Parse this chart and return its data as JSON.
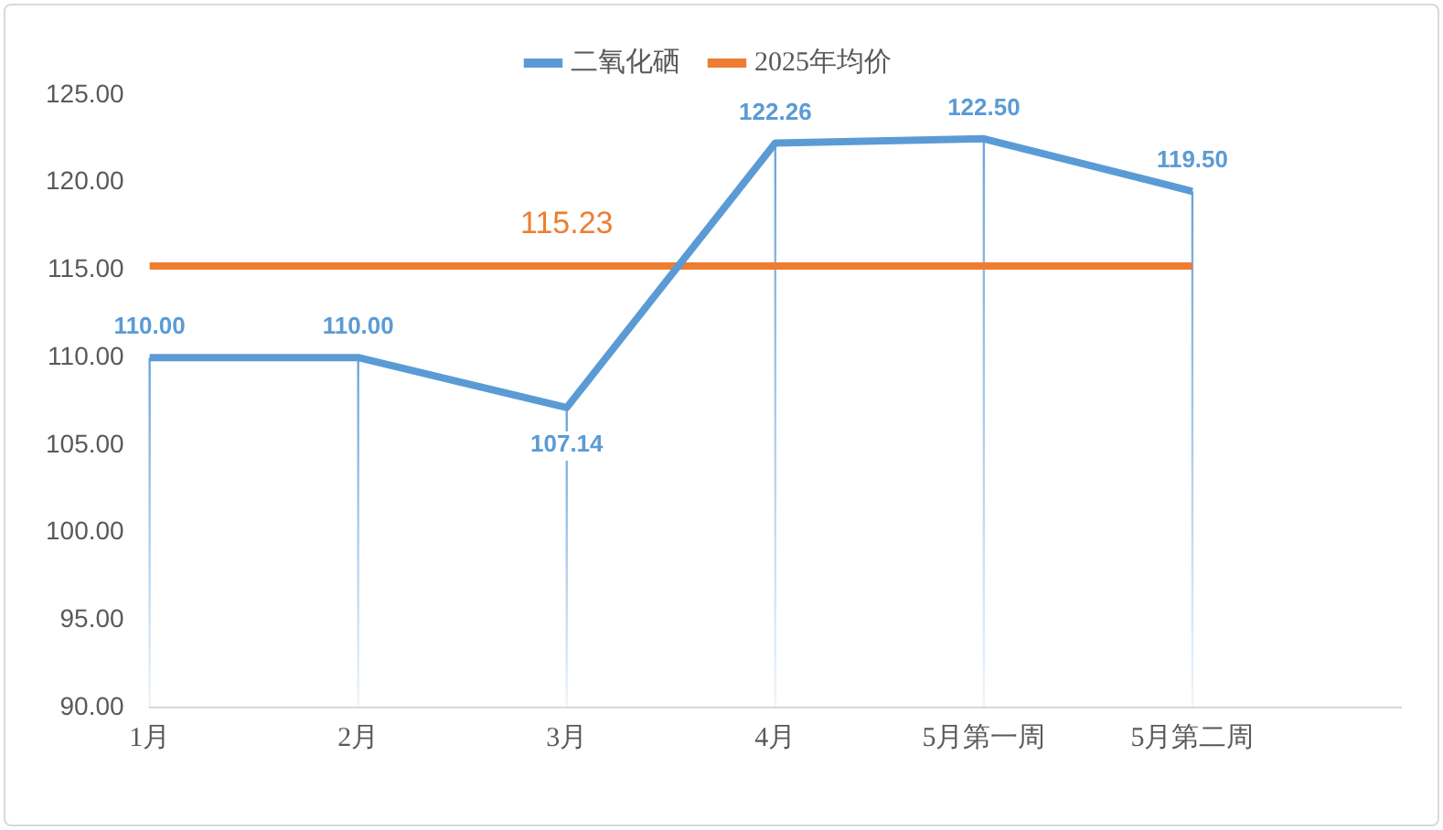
{
  "chart_data": {
    "type": "line",
    "categories": [
      "1月",
      "2月",
      "3月",
      "4月",
      "5月第一周",
      "5月第二周",
      null
    ],
    "series": [
      {
        "name": "二氧化硒",
        "color": "#5b9bd5",
        "values": [
          110,
          110,
          107.14,
          122.26,
          122.5,
          119.5,
          null
        ],
        "value_labels": [
          "110.00",
          "110.00",
          "107.14",
          "122.26",
          "122.50",
          "119.50",
          null
        ]
      },
      {
        "name": "2025年均价",
        "color": "#ed7d31",
        "values": [
          115.23,
          115.23,
          115.23,
          115.23,
          115.23,
          115.23,
          null
        ],
        "value_labels": [
          null,
          null,
          "115.23",
          null,
          null,
          null,
          null
        ]
      }
    ],
    "ylim": [
      90,
      125
    ],
    "yticks": [
      {
        "value": 90,
        "label": "90.00"
      },
      {
        "value": 95,
        "label": "95.00"
      },
      {
        "value": 100,
        "label": "100.00"
      },
      {
        "value": 105,
        "label": "105.00"
      },
      {
        "value": 110,
        "label": "110.00"
      },
      {
        "value": 115,
        "label": "115.00"
      },
      {
        "value": 120,
        "label": "120.00"
      },
      {
        "value": 125,
        "label": "125.00"
      }
    ],
    "grid": "x",
    "legend": "top",
    "marker": "none",
    "line_style": "solid"
  }
}
